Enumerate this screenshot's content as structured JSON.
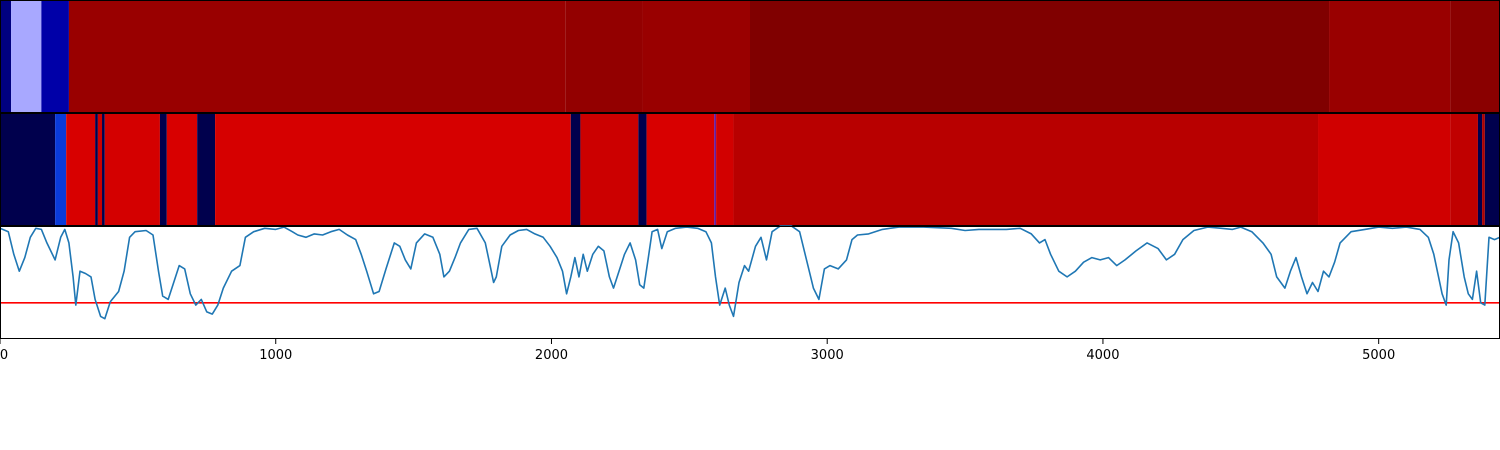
{
  "chart_data": [
    {
      "type": "heatmap",
      "name": "segment-band-1",
      "xlim": [
        0,
        5440
      ],
      "segments": [
        {
          "start": 0,
          "end": 40,
          "color": "#000080"
        },
        {
          "start": 40,
          "end": 150,
          "color": "#a8a8ff"
        },
        {
          "start": 150,
          "end": 250,
          "color": "#0000a8"
        },
        {
          "start": 250,
          "end": 2050,
          "color": "#990000"
        },
        {
          "start": 2050,
          "end": 2330,
          "color": "#930000"
        },
        {
          "start": 2330,
          "end": 2720,
          "color": "#990000"
        },
        {
          "start": 2720,
          "end": 4820,
          "color": "#800000"
        },
        {
          "start": 4820,
          "end": 5260,
          "color": "#990000"
        },
        {
          "start": 5260,
          "end": 5440,
          "color": "#8a0000"
        }
      ]
    },
    {
      "type": "heatmap",
      "name": "segment-band-2",
      "xlim": [
        0,
        5440
      ],
      "segments": [
        {
          "start": 0,
          "end": 200,
          "color": "#00004d"
        },
        {
          "start": 200,
          "end": 240,
          "color": "#0a3ad8"
        },
        {
          "start": 240,
          "end": 345,
          "color": "#d80000"
        },
        {
          "start": 345,
          "end": 355,
          "color": "#00004d"
        },
        {
          "start": 355,
          "end": 370,
          "color": "#cc0000"
        },
        {
          "start": 370,
          "end": 380,
          "color": "#00004d"
        },
        {
          "start": 380,
          "end": 580,
          "color": "#d40000"
        },
        {
          "start": 580,
          "end": 605,
          "color": "#00004d"
        },
        {
          "start": 605,
          "end": 715,
          "color": "#d80000"
        },
        {
          "start": 715,
          "end": 780,
          "color": "#00004d"
        },
        {
          "start": 780,
          "end": 2070,
          "color": "#d60000"
        },
        {
          "start": 2070,
          "end": 2105,
          "color": "#00004d"
        },
        {
          "start": 2105,
          "end": 2315,
          "color": "#cc0000"
        },
        {
          "start": 2315,
          "end": 2345,
          "color": "#00004d"
        },
        {
          "start": 2345,
          "end": 2590,
          "color": "#d80000"
        },
        {
          "start": 2590,
          "end": 2597,
          "color": "#6a1a9a"
        },
        {
          "start": 2597,
          "end": 2660,
          "color": "#d20000"
        },
        {
          "start": 2660,
          "end": 4780,
          "color": "#b80000"
        },
        {
          "start": 4780,
          "end": 5260,
          "color": "#d00000"
        },
        {
          "start": 5260,
          "end": 5360,
          "color": "#c00000"
        },
        {
          "start": 5360,
          "end": 5375,
          "color": "#00004d"
        },
        {
          "start": 5375,
          "end": 5385,
          "color": "#aa0000"
        },
        {
          "start": 5385,
          "end": 5440,
          "color": "#00004d"
        }
      ]
    },
    {
      "type": "line",
      "name": "signal-line",
      "xlim": [
        0,
        5440
      ],
      "ylim": [
        0,
        1
      ],
      "threshold": 0.32,
      "threshold_color": "#ff0000",
      "line_color": "#1f77b4",
      "x_ticks": [
        0,
        1000,
        2000,
        3000,
        4000,
        5000
      ],
      "x_tick_labels": [
        "0",
        "1000",
        "2000",
        "3000",
        "4000",
        "5000"
      ],
      "points": [
        [
          0,
          0.98
        ],
        [
          30,
          0.95
        ],
        [
          50,
          0.75
        ],
        [
          70,
          0.6
        ],
        [
          90,
          0.72
        ],
        [
          110,
          0.9
        ],
        [
          130,
          0.98
        ],
        [
          150,
          0.97
        ],
        [
          170,
          0.85
        ],
        [
          200,
          0.7
        ],
        [
          220,
          0.9
        ],
        [
          235,
          0.97
        ],
        [
          250,
          0.85
        ],
        [
          265,
          0.55
        ],
        [
          275,
          0.3
        ],
        [
          290,
          0.6
        ],
        [
          310,
          0.58
        ],
        [
          330,
          0.55
        ],
        [
          345,
          0.35
        ],
        [
          365,
          0.2
        ],
        [
          380,
          0.18
        ],
        [
          400,
          0.33
        ],
        [
          430,
          0.42
        ],
        [
          450,
          0.6
        ],
        [
          470,
          0.9
        ],
        [
          490,
          0.95
        ],
        [
          530,
          0.96
        ],
        [
          555,
          0.92
        ],
        [
          575,
          0.6
        ],
        [
          590,
          0.38
        ],
        [
          610,
          0.35
        ],
        [
          630,
          0.5
        ],
        [
          650,
          0.65
        ],
        [
          670,
          0.62
        ],
        [
          690,
          0.4
        ],
        [
          710,
          0.3
        ],
        [
          730,
          0.35
        ],
        [
          750,
          0.24
        ],
        [
          770,
          0.22
        ],
        [
          790,
          0.3
        ],
        [
          810,
          0.45
        ],
        [
          840,
          0.6
        ],
        [
          870,
          0.65
        ],
        [
          890,
          0.9
        ],
        [
          920,
          0.95
        ],
        [
          960,
          0.98
        ],
        [
          1000,
          0.97
        ],
        [
          1030,
          0.99
        ],
        [
          1060,
          0.95
        ],
        [
          1080,
          0.92
        ],
        [
          1110,
          0.9
        ],
        [
          1140,
          0.93
        ],
        [
          1170,
          0.92
        ],
        [
          1200,
          0.95
        ],
        [
          1230,
          0.97
        ],
        [
          1260,
          0.92
        ],
        [
          1290,
          0.88
        ],
        [
          1310,
          0.75
        ],
        [
          1330,
          0.6
        ],
        [
          1355,
          0.4
        ],
        [
          1375,
          0.42
        ],
        [
          1400,
          0.62
        ],
        [
          1430,
          0.85
        ],
        [
          1450,
          0.82
        ],
        [
          1470,
          0.7
        ],
        [
          1490,
          0.62
        ],
        [
          1510,
          0.85
        ],
        [
          1540,
          0.93
        ],
        [
          1570,
          0.9
        ],
        [
          1595,
          0.75
        ],
        [
          1610,
          0.55
        ],
        [
          1630,
          0.6
        ],
        [
          1650,
          0.72
        ],
        [
          1670,
          0.85
        ],
        [
          1700,
          0.97
        ],
        [
          1730,
          0.98
        ],
        [
          1760,
          0.85
        ],
        [
          1780,
          0.62
        ],
        [
          1790,
          0.5
        ],
        [
          1800,
          0.55
        ],
        [
          1820,
          0.82
        ],
        [
          1850,
          0.92
        ],
        [
          1880,
          0.96
        ],
        [
          1910,
          0.97
        ],
        [
          1940,
          0.93
        ],
        [
          1970,
          0.9
        ],
        [
          1995,
          0.82
        ],
        [
          2020,
          0.72
        ],
        [
          2040,
          0.6
        ],
        [
          2055,
          0.4
        ],
        [
          2070,
          0.55
        ],
        [
          2085,
          0.72
        ],
        [
          2100,
          0.55
        ],
        [
          2115,
          0.75
        ],
        [
          2130,
          0.6
        ],
        [
          2150,
          0.75
        ],
        [
          2170,
          0.82
        ],
        [
          2190,
          0.78
        ],
        [
          2210,
          0.55
        ],
        [
          2225,
          0.45
        ],
        [
          2245,
          0.6
        ],
        [
          2265,
          0.75
        ],
        [
          2285,
          0.85
        ],
        [
          2305,
          0.7
        ],
        [
          2320,
          0.48
        ],
        [
          2335,
          0.45
        ],
        [
          2350,
          0.7
        ],
        [
          2365,
          0.95
        ],
        [
          2385,
          0.97
        ],
        [
          2400,
          0.8
        ],
        [
          2420,
          0.95
        ],
        [
          2450,
          0.98
        ],
        [
          2490,
          0.99
        ],
        [
          2530,
          0.98
        ],
        [
          2560,
          0.95
        ],
        [
          2580,
          0.85
        ],
        [
          2595,
          0.55
        ],
        [
          2610,
          0.3
        ],
        [
          2630,
          0.45
        ],
        [
          2645,
          0.3
        ],
        [
          2660,
          0.2
        ],
        [
          2680,
          0.5
        ],
        [
          2700,
          0.65
        ],
        [
          2715,
          0.6
        ],
        [
          2740,
          0.82
        ],
        [
          2760,
          0.9
        ],
        [
          2780,
          0.7
        ],
        [
          2800,
          0.95
        ],
        [
          2830,
          1.0
        ],
        [
          2870,
          1.0
        ],
        [
          2900,
          0.95
        ],
        [
          2930,
          0.65
        ],
        [
          2950,
          0.45
        ],
        [
          2970,
          0.35
        ],
        [
          2990,
          0.62
        ],
        [
          3010,
          0.65
        ],
        [
          3040,
          0.62
        ],
        [
          3070,
          0.7
        ],
        [
          3090,
          0.88
        ],
        [
          3110,
          0.92
        ],
        [
          3150,
          0.93
        ],
        [
          3200,
          0.97
        ],
        [
          3260,
          0.99
        ],
        [
          3350,
          0.99
        ],
        [
          3450,
          0.98
        ],
        [
          3500,
          0.96
        ],
        [
          3550,
          0.97
        ],
        [
          3650,
          0.97
        ],
        [
          3700,
          0.98
        ],
        [
          3740,
          0.93
        ],
        [
          3770,
          0.85
        ],
        [
          3790,
          0.88
        ],
        [
          3810,
          0.75
        ],
        [
          3840,
          0.6
        ],
        [
          3870,
          0.55
        ],
        [
          3900,
          0.6
        ],
        [
          3930,
          0.68
        ],
        [
          3960,
          0.72
        ],
        [
          3990,
          0.7
        ],
        [
          4020,
          0.72
        ],
        [
          4050,
          0.65
        ],
        [
          4080,
          0.7
        ],
        [
          4120,
          0.78
        ],
        [
          4160,
          0.85
        ],
        [
          4200,
          0.8
        ],
        [
          4230,
          0.7
        ],
        [
          4260,
          0.75
        ],
        [
          4290,
          0.88
        ],
        [
          4330,
          0.96
        ],
        [
          4380,
          0.99
        ],
        [
          4430,
          0.98
        ],
        [
          4470,
          0.97
        ],
        [
          4500,
          0.99
        ],
        [
          4540,
          0.95
        ],
        [
          4580,
          0.85
        ],
        [
          4610,
          0.75
        ],
        [
          4630,
          0.55
        ],
        [
          4660,
          0.45
        ],
        [
          4680,
          0.6
        ],
        [
          4700,
          0.72
        ],
        [
          4720,
          0.55
        ],
        [
          4740,
          0.4
        ],
        [
          4760,
          0.5
        ],
        [
          4780,
          0.42
        ],
        [
          4800,
          0.6
        ],
        [
          4820,
          0.55
        ],
        [
          4840,
          0.68
        ],
        [
          4860,
          0.85
        ],
        [
          4900,
          0.95
        ],
        [
          4950,
          0.97
        ],
        [
          5000,
          0.99
        ],
        [
          5050,
          0.98
        ],
        [
          5100,
          0.99
        ],
        [
          5150,
          0.97
        ],
        [
          5180,
          0.9
        ],
        [
          5200,
          0.75
        ],
        [
          5230,
          0.4
        ],
        [
          5245,
          0.3
        ],
        [
          5255,
          0.7
        ],
        [
          5270,
          0.95
        ],
        [
          5290,
          0.85
        ],
        [
          5310,
          0.55
        ],
        [
          5325,
          0.4
        ],
        [
          5340,
          0.35
        ],
        [
          5355,
          0.6
        ],
        [
          5370,
          0.32
        ],
        [
          5385,
          0.3
        ],
        [
          5400,
          0.9
        ],
        [
          5420,
          0.88
        ],
        [
          5440,
          0.9
        ]
      ]
    }
  ]
}
